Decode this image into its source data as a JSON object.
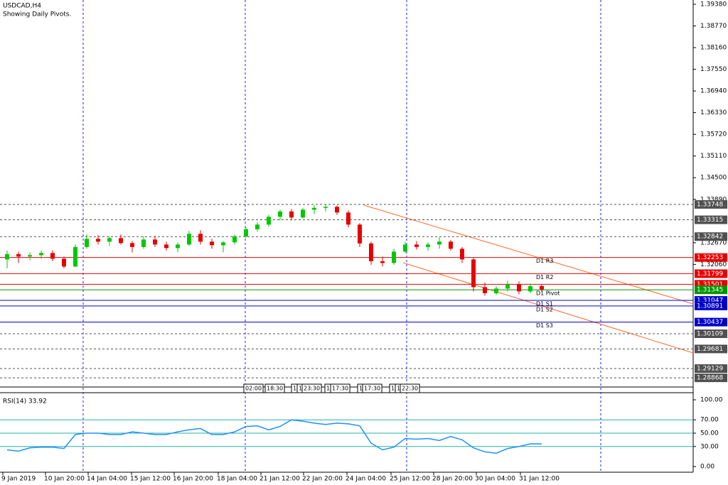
{
  "chart_data": [
    {
      "type": "candlestick",
      "title": "USDCAD,H4",
      "subtitle": "Showing Daily Pivots.",
      "open": [
        1.322,
        1.3235,
        1.3228,
        1.3232,
        1.3238,
        1.3222,
        1.32,
        1.3255,
        1.3278,
        1.327,
        1.328,
        1.3266,
        1.3255,
        1.3276,
        1.3262,
        1.3252,
        1.3262,
        1.3292,
        1.327,
        1.326,
        1.3268,
        1.3285,
        1.3305,
        1.3318,
        1.334,
        1.3355,
        1.3338,
        1.336,
        1.3365,
        1.3368,
        1.3352,
        1.3318,
        1.3265,
        1.3215,
        1.321,
        1.3242,
        1.3262,
        1.3255,
        1.3262,
        1.327,
        1.325,
        1.322,
        1.3142,
        1.3125,
        1.3138,
        1.315,
        1.313,
        1.3145
      ],
      "high": [
        1.3245,
        1.3242,
        1.324,
        1.3245,
        1.3246,
        1.3228,
        1.3262,
        1.329,
        1.3288,
        1.3285,
        1.329,
        1.3272,
        1.3285,
        1.3286,
        1.327,
        1.3268,
        1.33,
        1.3302,
        1.3278,
        1.3272,
        1.329,
        1.331,
        1.3325,
        1.3345,
        1.336,
        1.3362,
        1.3365,
        1.3372,
        1.3375,
        1.3372,
        1.3358,
        1.3322,
        1.327,
        1.3228,
        1.325,
        1.327,
        1.3272,
        1.3268,
        1.3282,
        1.3275,
        1.3255,
        1.3225,
        1.3155,
        1.3145,
        1.316,
        1.3158,
        1.3152,
        1.315
      ],
      "low": [
        1.3195,
        1.321,
        1.3218,
        1.3222,
        1.3215,
        1.3195,
        1.3198,
        1.325,
        1.3262,
        1.3258,
        1.3262,
        1.324,
        1.325,
        1.3255,
        1.3245,
        1.324,
        1.3258,
        1.3262,
        1.325,
        1.324,
        1.3262,
        1.328,
        1.3298,
        1.3312,
        1.333,
        1.333,
        1.3335,
        1.3348,
        1.3355,
        1.3345,
        1.331,
        1.3255,
        1.3205,
        1.32,
        1.3205,
        1.3238,
        1.3248,
        1.3245,
        1.325,
        1.3245,
        1.321,
        1.313,
        1.3118,
        1.312,
        1.313,
        1.3122,
        1.3125,
        1.313
      ],
      "close": [
        1.3235,
        1.3228,
        1.3232,
        1.3238,
        1.3222,
        1.32,
        1.3255,
        1.3278,
        1.327,
        1.328,
        1.3266,
        1.3255,
        1.3276,
        1.3262,
        1.3252,
        1.3262,
        1.3292,
        1.327,
        1.326,
        1.3268,
        1.3285,
        1.3305,
        1.3318,
        1.334,
        1.3355,
        1.3338,
        1.336,
        1.3365,
        1.3368,
        1.3352,
        1.3318,
        1.3265,
        1.3215,
        1.321,
        1.3242,
        1.3262,
        1.3255,
        1.3262,
        1.327,
        1.325,
        1.322,
        1.3142,
        1.3125,
        1.3138,
        1.315,
        1.313,
        1.3145,
        1.3135
      ],
      "up_color": "#00c800",
      "down_color": "#e60000",
      "ylim": [
        1.2871,
        1.395
      ],
      "yticks": [
        {
          "value": 1.3938,
          "label": "1.39380"
        },
        {
          "value": 1.3877,
          "label": "1.38770"
        },
        {
          "value": 1.3816,
          "label": "1.38160"
        },
        {
          "value": 1.3755,
          "label": "1.37550"
        },
        {
          "value": 1.3694,
          "label": "1.36940"
        },
        {
          "value": 1.3633,
          "label": "1.36330"
        },
        {
          "value": 1.3572,
          "label": "1.35720"
        },
        {
          "value": 1.3511,
          "label": "1.35110"
        },
        {
          "value": 1.345,
          "label": "1.34500"
        },
        {
          "value": 1.3389,
          "label": "1.33890"
        },
        {
          "value": 1.3267,
          "label": "1.32670"
        },
        {
          "value": 1.3206,
          "label": "1.32060"
        }
      ],
      "levels": [
        {
          "value": 1.33748,
          "label": "1.33748"
        },
        {
          "value": 1.33315,
          "label": "1.33315"
        },
        {
          "value": 1.32842,
          "label": "1.32842"
        },
        {
          "value": 1.30109,
          "label": "1.30109"
        },
        {
          "value": 1.29681,
          "label": "1.29681"
        },
        {
          "value": 1.29129,
          "label": "1.29129"
        },
        {
          "value": 1.28868,
          "label": "1.28868"
        }
      ],
      "level_color": "#505050",
      "pivots": [
        {
          "name": "D1 R3",
          "value": 1.32253,
          "label": "1.32253",
          "color": "#e60000"
        },
        {
          "name": "D1 R2",
          "value": 1.31799,
          "label": "1.31799",
          "color": "#e60000"
        },
        {
          "value": 1.31501,
          "label": "1.31501",
          "color": "#e60000"
        },
        {
          "name": "D1 Pivot",
          "value": 1.31345,
          "label": "1.31345",
          "color": "#009600"
        },
        {
          "name": "D1 S1",
          "value": 1.31047,
          "label": "1.31047",
          "color": "#0000c8"
        },
        {
          "name": "D1 S2",
          "value": 1.30891,
          "label": "1.30891",
          "color": "#0000c8"
        },
        {
          "name": "D1 S3",
          "value": 1.30437,
          "label": "1.30437",
          "color": "#0000c8"
        }
      ],
      "x_labels": [
        "9 Jan 2019",
        "10 Jan 20:00",
        "14 Jan 04:00",
        "15 Jan 12:00",
        "16 Jan 20:00",
        "18 Jan 04:00",
        "21 Jan 12:00",
        "22 Jan 20:00",
        "24 Jan 04:00",
        "25 Jan 12:00",
        "28 Jan 20:00",
        "30 Jan 04:00",
        "31 Jan 12:00"
      ],
      "time_markers": [
        "02:00",
        "18:30",
        "1",
        "1",
        "23:30",
        "1",
        "17:30",
        "1",
        "17:30",
        "1",
        "1",
        "22:30"
      ]
    },
    {
      "type": "line",
      "title": "RSI(14) 33.92",
      "color": "#1e90ff",
      "values": [
        25,
        23,
        28,
        29,
        29,
        27,
        48,
        50,
        50,
        48,
        48,
        52,
        50,
        48,
        48,
        52,
        55,
        57,
        48,
        48,
        52,
        60,
        61,
        55,
        60,
        70,
        68,
        65,
        63,
        65,
        64,
        61,
        35,
        25,
        29,
        42,
        41,
        42,
        39,
        45,
        40,
        28,
        22,
        20,
        27,
        30,
        34,
        33.92
      ],
      "ylim": [
        0,
        100
      ],
      "yticks": [
        {
          "value": 100,
          "label": "100.00"
        },
        {
          "value": 70,
          "label": "70.00"
        },
        {
          "value": 50,
          "label": "50.00"
        },
        {
          "value": 30,
          "label": "30.00"
        },
        {
          "value": 0,
          "label": "0.00"
        }
      ],
      "levels": [
        70,
        50,
        30
      ],
      "level_color": "#20b2aa"
    }
  ]
}
